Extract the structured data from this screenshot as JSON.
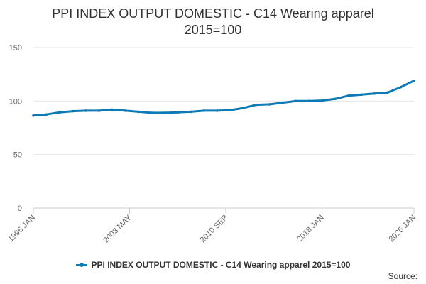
{
  "chart_data": {
    "type": "line",
    "title_lines": [
      "PPI INDEX OUTPUT DOMESTIC - C14 Wearing apparel",
      "2015=100"
    ],
    "xlabel": "",
    "ylabel": "",
    "ylim": [
      0,
      150
    ],
    "y_ticks": [
      0,
      50,
      100,
      150
    ],
    "x_tick_labels": [
      "1996 JAN",
      "2003 MAY",
      "2010 SEP",
      "2018 JAN",
      "2025 JAN"
    ],
    "grid": true,
    "legend_position": "bottom",
    "series": [
      {
        "name": "PPI INDEX OUTPUT DOMESTIC - C14 Wearing apparel 2015=100",
        "color": "#0d7ab5",
        "x": [
          "1996 JAN",
          "1997 JAN",
          "1998 JAN",
          "1999 JAN",
          "2000 JAN",
          "2001 JAN",
          "2002 JAN",
          "2003 JAN",
          "2004 JAN",
          "2005 JAN",
          "2006 JAN",
          "2007 JAN",
          "2008 JAN",
          "2009 JAN",
          "2010 JAN",
          "2011 JAN",
          "2012 JAN",
          "2013 JAN",
          "2014 JAN",
          "2015 JAN",
          "2016 JAN",
          "2017 JAN",
          "2018 JAN",
          "2019 JAN",
          "2020 JAN",
          "2021 JAN",
          "2022 JAN",
          "2023 JAN",
          "2024 JAN",
          "2025 JAN"
        ],
        "values": [
          86.5,
          87.5,
          89.5,
          90.5,
          91,
          91,
          92,
          91,
          90,
          89,
          89,
          89.5,
          90,
          91,
          91,
          91.5,
          93.5,
          96.5,
          97,
          98.5,
          100,
          100,
          100.5,
          102,
          105,
          106,
          107,
          108,
          113,
          119
        ]
      }
    ]
  },
  "source_label": "Source:"
}
